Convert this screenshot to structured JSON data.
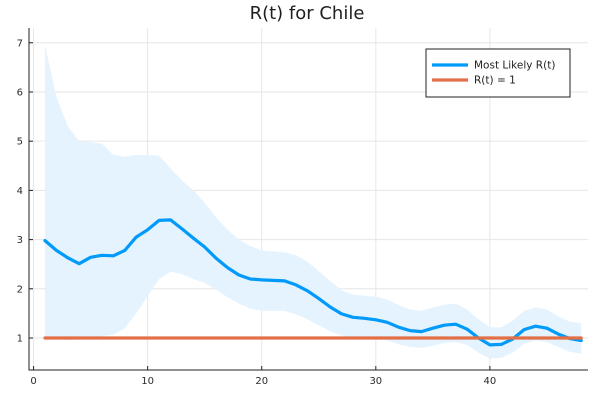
{
  "chart_data": {
    "type": "line",
    "title": "R(t) for Chile",
    "xlabel": "",
    "ylabel": "",
    "xlim": [
      -0.4,
      48.6
    ],
    "ylim": [
      0.35,
      7.3
    ],
    "x_ticks": [
      0,
      10,
      20,
      30,
      40
    ],
    "y_ticks": [
      1,
      2,
      3,
      4,
      5,
      6,
      7
    ],
    "grid": true,
    "legend_position": "top-right",
    "colors": {
      "most_likely": "#009AFA",
      "band": "#E5F3FE",
      "threshold": "#E26F46"
    },
    "series": [
      {
        "name": "Most Likely R(t)",
        "x": [
          1,
          2,
          3,
          4,
          5,
          6,
          7,
          8,
          9,
          10,
          11,
          12,
          13,
          14,
          15,
          16,
          17,
          18,
          19,
          20,
          21,
          22,
          23,
          24,
          25,
          26,
          27,
          28,
          29,
          30,
          31,
          32,
          33,
          34,
          35,
          36,
          37,
          38,
          39,
          40,
          41,
          42,
          43,
          44,
          45,
          46,
          47,
          48
        ],
        "y": [
          2.98,
          2.78,
          2.63,
          2.51,
          2.64,
          2.68,
          2.67,
          2.78,
          3.05,
          3.2,
          3.39,
          3.4,
          3.22,
          3.03,
          2.85,
          2.62,
          2.43,
          2.28,
          2.2,
          2.18,
          2.17,
          2.16,
          2.08,
          1.96,
          1.8,
          1.63,
          1.49,
          1.42,
          1.4,
          1.37,
          1.32,
          1.22,
          1.15,
          1.13,
          1.2,
          1.26,
          1.28,
          1.18,
          1.0,
          0.86,
          0.87,
          0.98,
          1.17,
          1.24,
          1.2,
          1.08,
          0.99,
          0.95
        ]
      },
      {
        "name": "R(t) = 1",
        "x": [
          1,
          48
        ],
        "y": [
          1,
          1
        ]
      }
    ],
    "credible_band": {
      "x": [
        1,
        2,
        3,
        4,
        5,
        6,
        7,
        8,
        9,
        10,
        11,
        12,
        13,
        14,
        15,
        16,
        17,
        18,
        19,
        20,
        21,
        22,
        23,
        24,
        25,
        26,
        27,
        28,
        29,
        30,
        31,
        32,
        33,
        34,
        35,
        36,
        37,
        38,
        39,
        40,
        41,
        42,
        43,
        44,
        45,
        46,
        47,
        48
      ],
      "lower": [
        1.0,
        0.98,
        0.96,
        0.97,
        1.0,
        1.04,
        1.07,
        1.2,
        1.5,
        1.85,
        2.2,
        2.35,
        2.3,
        2.2,
        2.12,
        1.98,
        1.83,
        1.7,
        1.6,
        1.55,
        1.55,
        1.55,
        1.48,
        1.38,
        1.26,
        1.14,
        1.05,
        1.01,
        1.0,
        0.98,
        0.95,
        0.87,
        0.82,
        0.8,
        0.84,
        0.9,
        0.92,
        0.86,
        0.7,
        0.58,
        0.6,
        0.7,
        0.88,
        0.95,
        0.92,
        0.82,
        0.72,
        0.68
      ],
      "upper": [
        6.95,
        5.9,
        5.3,
        5.0,
        4.98,
        4.95,
        4.72,
        4.68,
        4.72,
        4.72,
        4.7,
        4.45,
        4.2,
        4.0,
        3.75,
        3.45,
        3.2,
        3.0,
        2.87,
        2.78,
        2.76,
        2.74,
        2.68,
        2.55,
        2.36,
        2.16,
        1.97,
        1.88,
        1.86,
        1.84,
        1.78,
        1.67,
        1.58,
        1.55,
        1.62,
        1.68,
        1.7,
        1.58,
        1.38,
        1.22,
        1.22,
        1.35,
        1.55,
        1.62,
        1.58,
        1.44,
        1.33,
        1.3
      ]
    }
  }
}
